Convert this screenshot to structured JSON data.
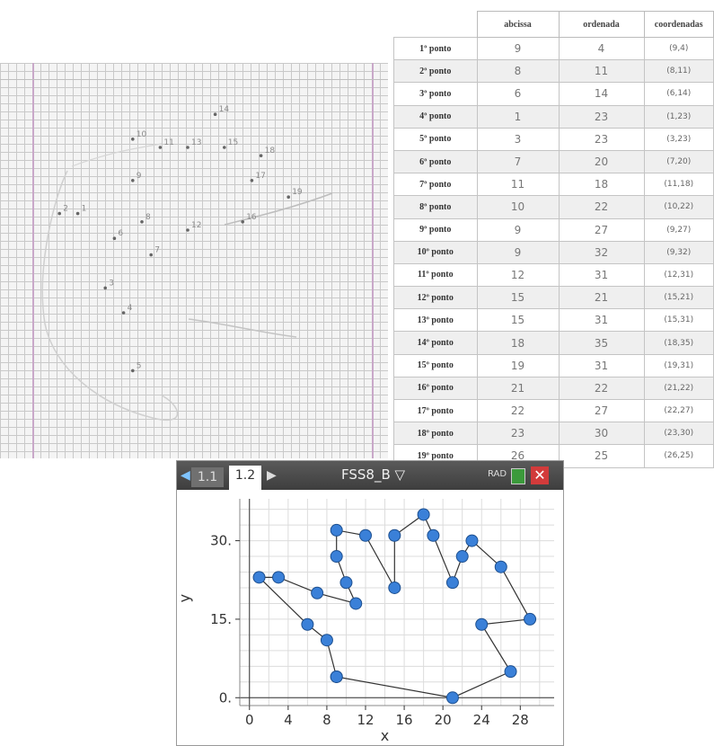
{
  "table": {
    "headers": [
      "",
      "abcissa",
      "ordenada",
      "coordenadas"
    ],
    "rows": [
      {
        "label": "1º ponto",
        "abcissa": "9",
        "ordenada": "4",
        "coord": "(9,4)"
      },
      {
        "label": "2º ponto",
        "abcissa": "8",
        "ordenada": "11",
        "coord": "(8,11)"
      },
      {
        "label": "3º ponto",
        "abcissa": "6",
        "ordenada": "14",
        "coord": "(6,14)"
      },
      {
        "label": "4º ponto",
        "abcissa": "1",
        "ordenada": "23",
        "coord": "(1,23)"
      },
      {
        "label": "5º ponto",
        "abcissa": "3",
        "ordenada": "23",
        "coord": "(3,23)"
      },
      {
        "label": "6º ponto",
        "abcissa": "7",
        "ordenada": "20",
        "coord": "(7,20)"
      },
      {
        "label": "7º ponto",
        "abcissa": "11",
        "ordenada": "18",
        "coord": "(11,18)"
      },
      {
        "label": "8º ponto",
        "abcissa": "10",
        "ordenada": "22",
        "coord": "(10,22)"
      },
      {
        "label": "9º ponto",
        "abcissa": "9",
        "ordenada": "27",
        "coord": "(9,27)"
      },
      {
        "label": "10º ponto",
        "abcissa": "9",
        "ordenada": "32",
        "coord": "(9,32)"
      },
      {
        "label": "11º ponto",
        "abcissa": "12",
        "ordenada": "31",
        "coord": "(12,31)"
      },
      {
        "label": "12º ponto",
        "abcissa": "15",
        "ordenada": "21",
        "coord": "(15,21)"
      },
      {
        "label": "13º ponto",
        "abcissa": "15",
        "ordenada": "31",
        "coord": "(15,31)"
      },
      {
        "label": "14º ponto",
        "abcissa": "18",
        "ordenada": "35",
        "coord": "(18,35)"
      },
      {
        "label": "15º ponto",
        "abcissa": "19",
        "ordenada": "31",
        "coord": "(19,31)"
      },
      {
        "label": "16º ponto",
        "abcissa": "21",
        "ordenada": "22",
        "coord": "(21,22)"
      },
      {
        "label": "17º ponto",
        "abcissa": "22",
        "ordenada": "27",
        "coord": "(22,27)"
      },
      {
        "label": "18º ponto",
        "abcissa": "23",
        "ordenada": "30",
        "coord": "(23,30)"
      },
      {
        "label": "19º ponto",
        "abcissa": "26",
        "ordenada": "25",
        "coord": "(26,25)"
      }
    ]
  },
  "calculator": {
    "tabs": [
      "1.1",
      "1.2"
    ],
    "active_tab": "1.2",
    "document_title": "FSS8_B",
    "mode": "RAD",
    "close_symbol": "✕"
  },
  "chart_data": {
    "type": "scatter",
    "connected": true,
    "xlabel": "x",
    "ylabel": "y",
    "xlim": [
      -1,
      31.5
    ],
    "ylim": [
      -1.5,
      38
    ],
    "xticks": [
      0,
      4,
      8,
      12,
      16,
      20,
      24,
      28
    ],
    "yticks": [
      0,
      15,
      30
    ],
    "point_color": "#3a80d8",
    "points": [
      [
        9,
        4
      ],
      [
        8,
        11
      ],
      [
        6,
        14
      ],
      [
        1,
        23
      ],
      [
        3,
        23
      ],
      [
        7,
        20
      ],
      [
        11,
        18
      ],
      [
        10,
        22
      ],
      [
        9,
        27
      ],
      [
        9,
        32
      ],
      [
        12,
        31
      ],
      [
        15,
        21
      ],
      [
        15,
        31
      ],
      [
        18,
        35
      ],
      [
        19,
        31
      ],
      [
        21,
        22
      ],
      [
        22,
        27
      ],
      [
        23,
        30
      ],
      [
        26,
        25
      ],
      [
        29,
        15
      ],
      [
        24,
        14
      ],
      [
        27,
        5
      ],
      [
        21,
        0
      ],
      [
        9,
        4
      ]
    ]
  },
  "paper": {
    "labels": [
      "5",
      "4",
      "3",
      "2",
      "1",
      "6",
      "7",
      "8",
      "9",
      "10",
      "11",
      "12",
      "13",
      "14",
      "15",
      "16",
      "17",
      "18",
      "19"
    ]
  }
}
